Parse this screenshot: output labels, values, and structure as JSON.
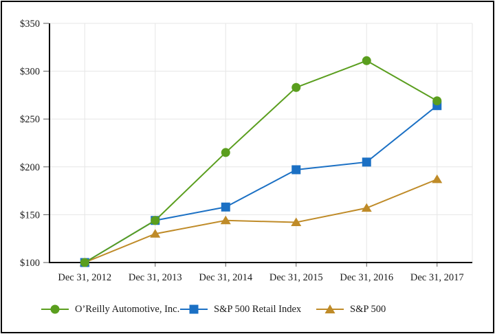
{
  "chart_data": {
    "type": "line",
    "title": "",
    "xlabel": "",
    "ylabel": "",
    "categories": [
      "Dec 31, 2012",
      "Dec 31, 2013",
      "Dec 31, 2014",
      "Dec 31, 2015",
      "Dec 31, 2016",
      "Dec 31, 2017"
    ],
    "series": [
      {
        "name": "O’Reilly Automotive, Inc.",
        "marker": "circle",
        "color": "#5a9e1e",
        "values": [
          100,
          144,
          215,
          283,
          311,
          269
        ]
      },
      {
        "name": "S&P 500 Retail Index",
        "marker": "square",
        "color": "#1b70c4",
        "values": [
          100,
          144,
          158,
          197,
          205,
          264
        ]
      },
      {
        "name": "S&P 500",
        "marker": "triangle",
        "color": "#bf8b28",
        "values": [
          100,
          130,
          144,
          142,
          157,
          187
        ]
      }
    ],
    "ylim": [
      100,
      350
    ],
    "ytick_step": 50,
    "ytick_labels": [
      "$100",
      "$150",
      "$200",
      "$250",
      "$300",
      "$350"
    ],
    "grid": true,
    "legend_position": "bottom"
  },
  "colors": {
    "gridline": "#e6e6e6",
    "axis": "#000000",
    "tick": "#595959",
    "label": "#1a1a1a",
    "frame_border": "#000000"
  }
}
